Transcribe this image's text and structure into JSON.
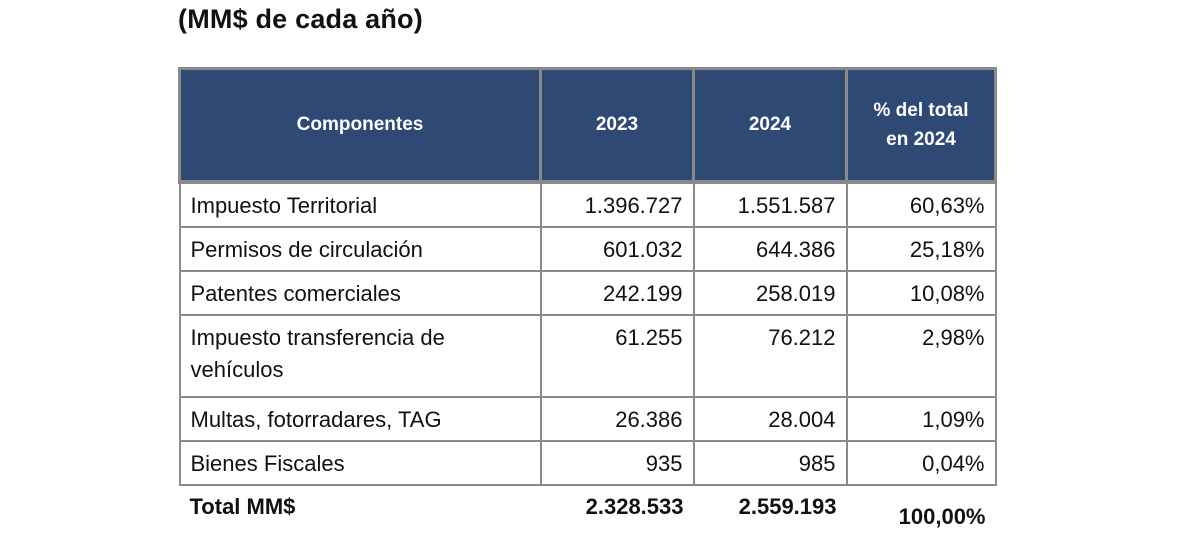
{
  "subtitle": "(MM$ de cada año)",
  "table": {
    "headers": {
      "component": "Componentes",
      "year1": "2023",
      "year2": "2024",
      "pct_line1": "% del total",
      "pct_line2": "en 2024"
    },
    "rows": [
      {
        "component": "Impuesto Territorial",
        "v2023": "1.396.727",
        "v2024": "1.551.587",
        "pct": "60,63%"
      },
      {
        "component": "Permisos de circulación",
        "v2023": "601.032",
        "v2024": "644.386",
        "pct": "25,18%"
      },
      {
        "component": "Patentes comerciales",
        "v2023": "242.199",
        "v2024": "258.019",
        "pct": "10,08%"
      },
      {
        "component": "Impuesto transferencia de vehículos",
        "v2023": "61.255",
        "v2024": "76.212",
        "pct": "2,98%"
      },
      {
        "component": "Multas, fotorradares, TAG",
        "v2023": "26.386",
        "v2024": "28.004",
        "pct": "1,09%"
      },
      {
        "component": "Bienes Fiscales",
        "v2023": "935",
        "v2024": "985",
        "pct": "0,04%"
      }
    ],
    "total": {
      "label": "Total MM$",
      "v2023": "2.328.533",
      "v2024": "2.559.193",
      "pct": "100,00%"
    }
  }
}
